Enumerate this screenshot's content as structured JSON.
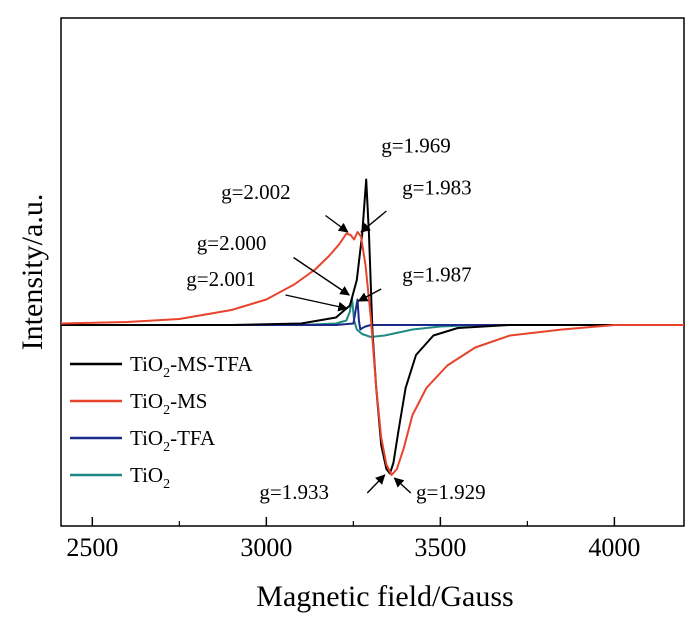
{
  "chart_data": {
    "type": "line",
    "xlabel": "Magnetic field/Gauss",
    "ylabel": "Intensity/a.u.",
    "xlim": [
      2410,
      4200
    ],
    "ylim": [
      -1.0,
      1.0
    ],
    "x_ticks": [
      2500,
      3000,
      3500,
      4000
    ],
    "x_tick_labels": [
      "2500",
      "3000",
      "3500",
      "4000"
    ],
    "y_ticks_shown": false,
    "grid": false,
    "legend_position": "bottom-left",
    "series": [
      {
        "name": "TiO2-MS-TFA",
        "label_parts": [
          "TiO",
          "2",
          "-MS-TFA"
        ],
        "color": "#000000",
        "x": [
          2410,
          2900,
          3100,
          3200,
          3240,
          3260,
          3275,
          3287,
          3295,
          3305,
          3315,
          3330,
          3345,
          3355,
          3365,
          3380,
          3400,
          3430,
          3480,
          3550,
          3700,
          4200
        ],
        "y": [
          0.0,
          0.0,
          0.01,
          0.05,
          0.13,
          0.3,
          0.6,
          0.97,
          0.6,
          -0.05,
          -0.4,
          -0.8,
          -0.96,
          -0.99,
          -0.92,
          -0.7,
          -0.42,
          -0.2,
          -0.07,
          -0.02,
          0.0,
          0.0
        ]
      },
      {
        "name": "TiO2-MS",
        "label_parts": [
          "TiO",
          "2",
          "-MS"
        ],
        "color": "#e8432c",
        "x": [
          2410,
          2600,
          2750,
          2900,
          3000,
          3080,
          3140,
          3180,
          3210,
          3230,
          3242,
          3252,
          3262,
          3272,
          3285,
          3300,
          3315,
          3330,
          3345,
          3360,
          3375,
          3395,
          3420,
          3460,
          3520,
          3600,
          3700,
          3850,
          4000,
          4200
        ],
        "y": [
          0.01,
          0.02,
          0.04,
          0.1,
          0.17,
          0.27,
          0.37,
          0.46,
          0.54,
          0.61,
          0.6,
          0.57,
          0.62,
          0.59,
          0.4,
          0.05,
          -0.4,
          -0.75,
          -0.93,
          -1.0,
          -0.96,
          -0.82,
          -0.6,
          -0.42,
          -0.27,
          -0.15,
          -0.07,
          -0.03,
          0.0,
          0.0
        ]
      },
      {
        "name": "TiO2-TFA",
        "label_parts": [
          "TiO",
          "2",
          "-TFA"
        ],
        "color": "#1b2a8a",
        "x": [
          2410,
          3200,
          3250,
          3262,
          3266,
          3270,
          3276,
          3285,
          3300,
          3400,
          3600,
          4200
        ],
        "y": [
          0.0,
          0.0,
          0.01,
          0.17,
          0.03,
          -0.03,
          -0.02,
          -0.01,
          0.0,
          0.0,
          0.0,
          0.0
        ]
      },
      {
        "name": "TiO2",
        "label_parts": [
          "TiO",
          "2",
          ""
        ],
        "color": "#1f8a84",
        "x": [
          2410,
          3100,
          3200,
          3230,
          3240,
          3246,
          3252,
          3260,
          3275,
          3300,
          3340,
          3380,
          3420,
          3500,
          3600,
          4200
        ],
        "y": [
          0.0,
          0.0,
          0.01,
          0.03,
          0.09,
          0.18,
          0.03,
          -0.03,
          -0.06,
          -0.08,
          -0.07,
          -0.05,
          -0.03,
          -0.01,
          0.0,
          0.0
        ]
      }
    ],
    "annotations": [
      {
        "text": "g=1.969",
        "tx": 3330,
        "ty": 1.15,
        "ax": null,
        "ay": null,
        "bx": null,
        "by": null
      },
      {
        "text": "g=2.002",
        "tx": 2870,
        "ty": 0.84,
        "ax": 3170,
        "ay": 0.73,
        "bx": 3234,
        "by": 0.62
      },
      {
        "text": "g=1.983",
        "tx": 3390,
        "ty": 0.87,
        "ax": 3345,
        "ay": 0.76,
        "bx": 3272,
        "by": 0.62
      },
      {
        "text": "g=2.000",
        "tx": 2800,
        "ty": 0.5,
        "ax": 3078,
        "ay": 0.45,
        "bx": 3238,
        "by": 0.2
      },
      {
        "text": "g=2.001",
        "tx": 2770,
        "ty": 0.26,
        "ax": 3055,
        "ay": 0.2,
        "bx": 3232,
        "by": 0.11
      },
      {
        "text": "g=1.987",
        "tx": 3390,
        "ty": 0.29,
        "ax": 3330,
        "ay": 0.24,
        "bx": 3265,
        "by": 0.16
      },
      {
        "text": "g=1.933",
        "tx": 2980,
        "ty": -1.16,
        "ax": 3290,
        "ay": -1.12,
        "bx": 3340,
        "by": -1.0
      },
      {
        "text": "g=1.929",
        "tx": 3430,
        "ty": -1.16,
        "ax": 3415,
        "ay": -1.12,
        "bx": 3368,
        "by": -1.02
      }
    ]
  }
}
